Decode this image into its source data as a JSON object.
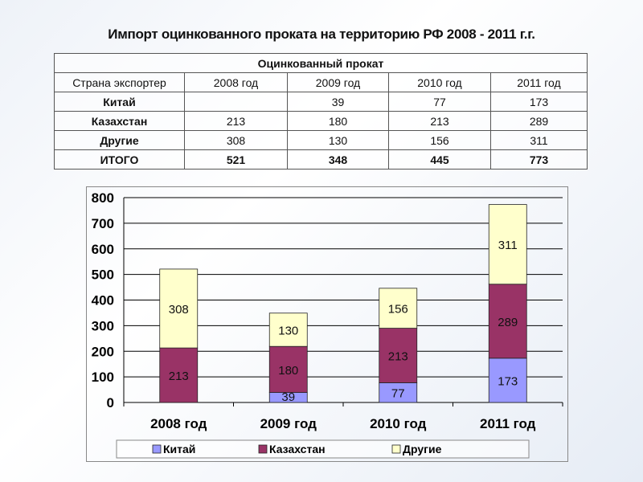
{
  "title": "Импорт оцинкованного проката на территорию РФ 2008 - 2011 г.г.",
  "table": {
    "caption": "Оцинкованный прокат",
    "headers": [
      "Страна экспортер",
      "2008 год",
      "2009 год",
      "2010 год",
      "2011 год"
    ],
    "rows": [
      [
        "Китай",
        "",
        "39",
        "77",
        "173"
      ],
      [
        "Казахстан",
        "213",
        "180",
        "213",
        "289"
      ],
      [
        "Другие",
        "308",
        "130",
        "156",
        "311"
      ],
      [
        "ИТОГО",
        "521",
        "348",
        "445",
        "773"
      ]
    ]
  },
  "chart_data": {
    "type": "bar",
    "stacked": true,
    "categories": [
      "2008 год",
      "2009 год",
      "2010 год",
      "2011 год"
    ],
    "series": [
      {
        "name": "Китай",
        "values": [
          0,
          39,
          77,
          173
        ],
        "color": "#9999ff"
      },
      {
        "name": "Казахстан",
        "values": [
          213,
          180,
          213,
          289
        ],
        "color": "#993366"
      },
      {
        "name": "Другие",
        "values": [
          308,
          130,
          156,
          311
        ],
        "color": "#ffffcc"
      }
    ],
    "ylim": [
      0,
      800
    ],
    "yticks": [
      0,
      100,
      200,
      300,
      400,
      500,
      600,
      700,
      800
    ],
    "grid": true,
    "legend": "bottom"
  }
}
